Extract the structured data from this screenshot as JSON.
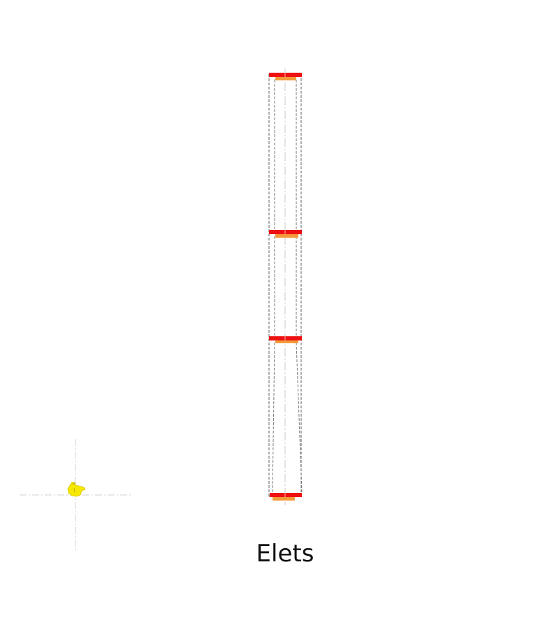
{
  "caption": "Elets",
  "colors": {
    "background": "#ffffff",
    "outline": "#7a7a7a",
    "centerline": "#c9c9c9",
    "plate": "#ee1111",
    "plate_underside": "#f39a3a",
    "cursor": "#f6e800"
  },
  "icons": {
    "cursor": "pointing-hand-cursor-icon"
  }
}
